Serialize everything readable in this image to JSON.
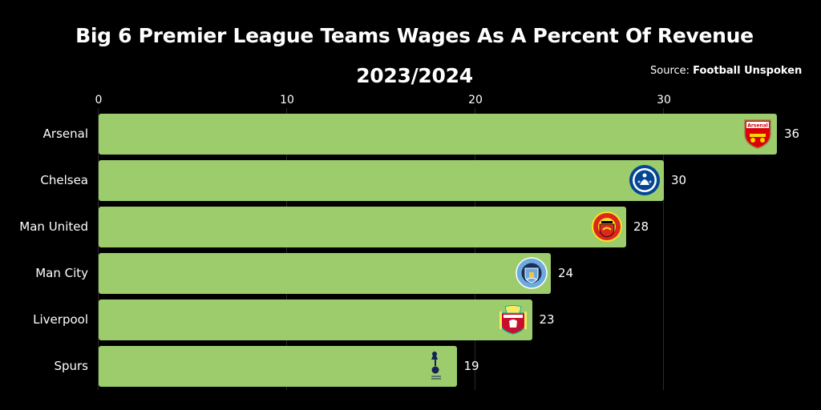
{
  "title_line1": "Big 6 Premier League Teams Wages As A Percent Of Revenue",
  "title_line2": "2023/2024",
  "source_prefix": "Source:",
  "source_name": "Football Unspoken",
  "chart_data": {
    "type": "bar",
    "orientation": "horizontal",
    "title": "Big 6 Premier League Teams Wages As A Percent Of Revenue 2023/2024",
    "categories": [
      "Arsenal",
      "Chelsea",
      "Man United",
      "Man City",
      "Liverpool",
      "Spurs"
    ],
    "values": [
      36,
      30,
      28,
      24,
      23,
      19
    ],
    "data_labels": [
      "36",
      "30",
      "28",
      "24",
      "23",
      "19"
    ],
    "x_ticks": [
      0,
      10,
      20,
      30
    ],
    "xlim": [
      0,
      35.8
    ],
    "grid": true,
    "axis_position": "top",
    "bar_color": "#9ccc6c",
    "logos": [
      "arsenal-crest",
      "chelsea-crest",
      "man-united-crest",
      "man-city-crest",
      "liverpool-crest",
      "spurs-crest"
    ]
  }
}
